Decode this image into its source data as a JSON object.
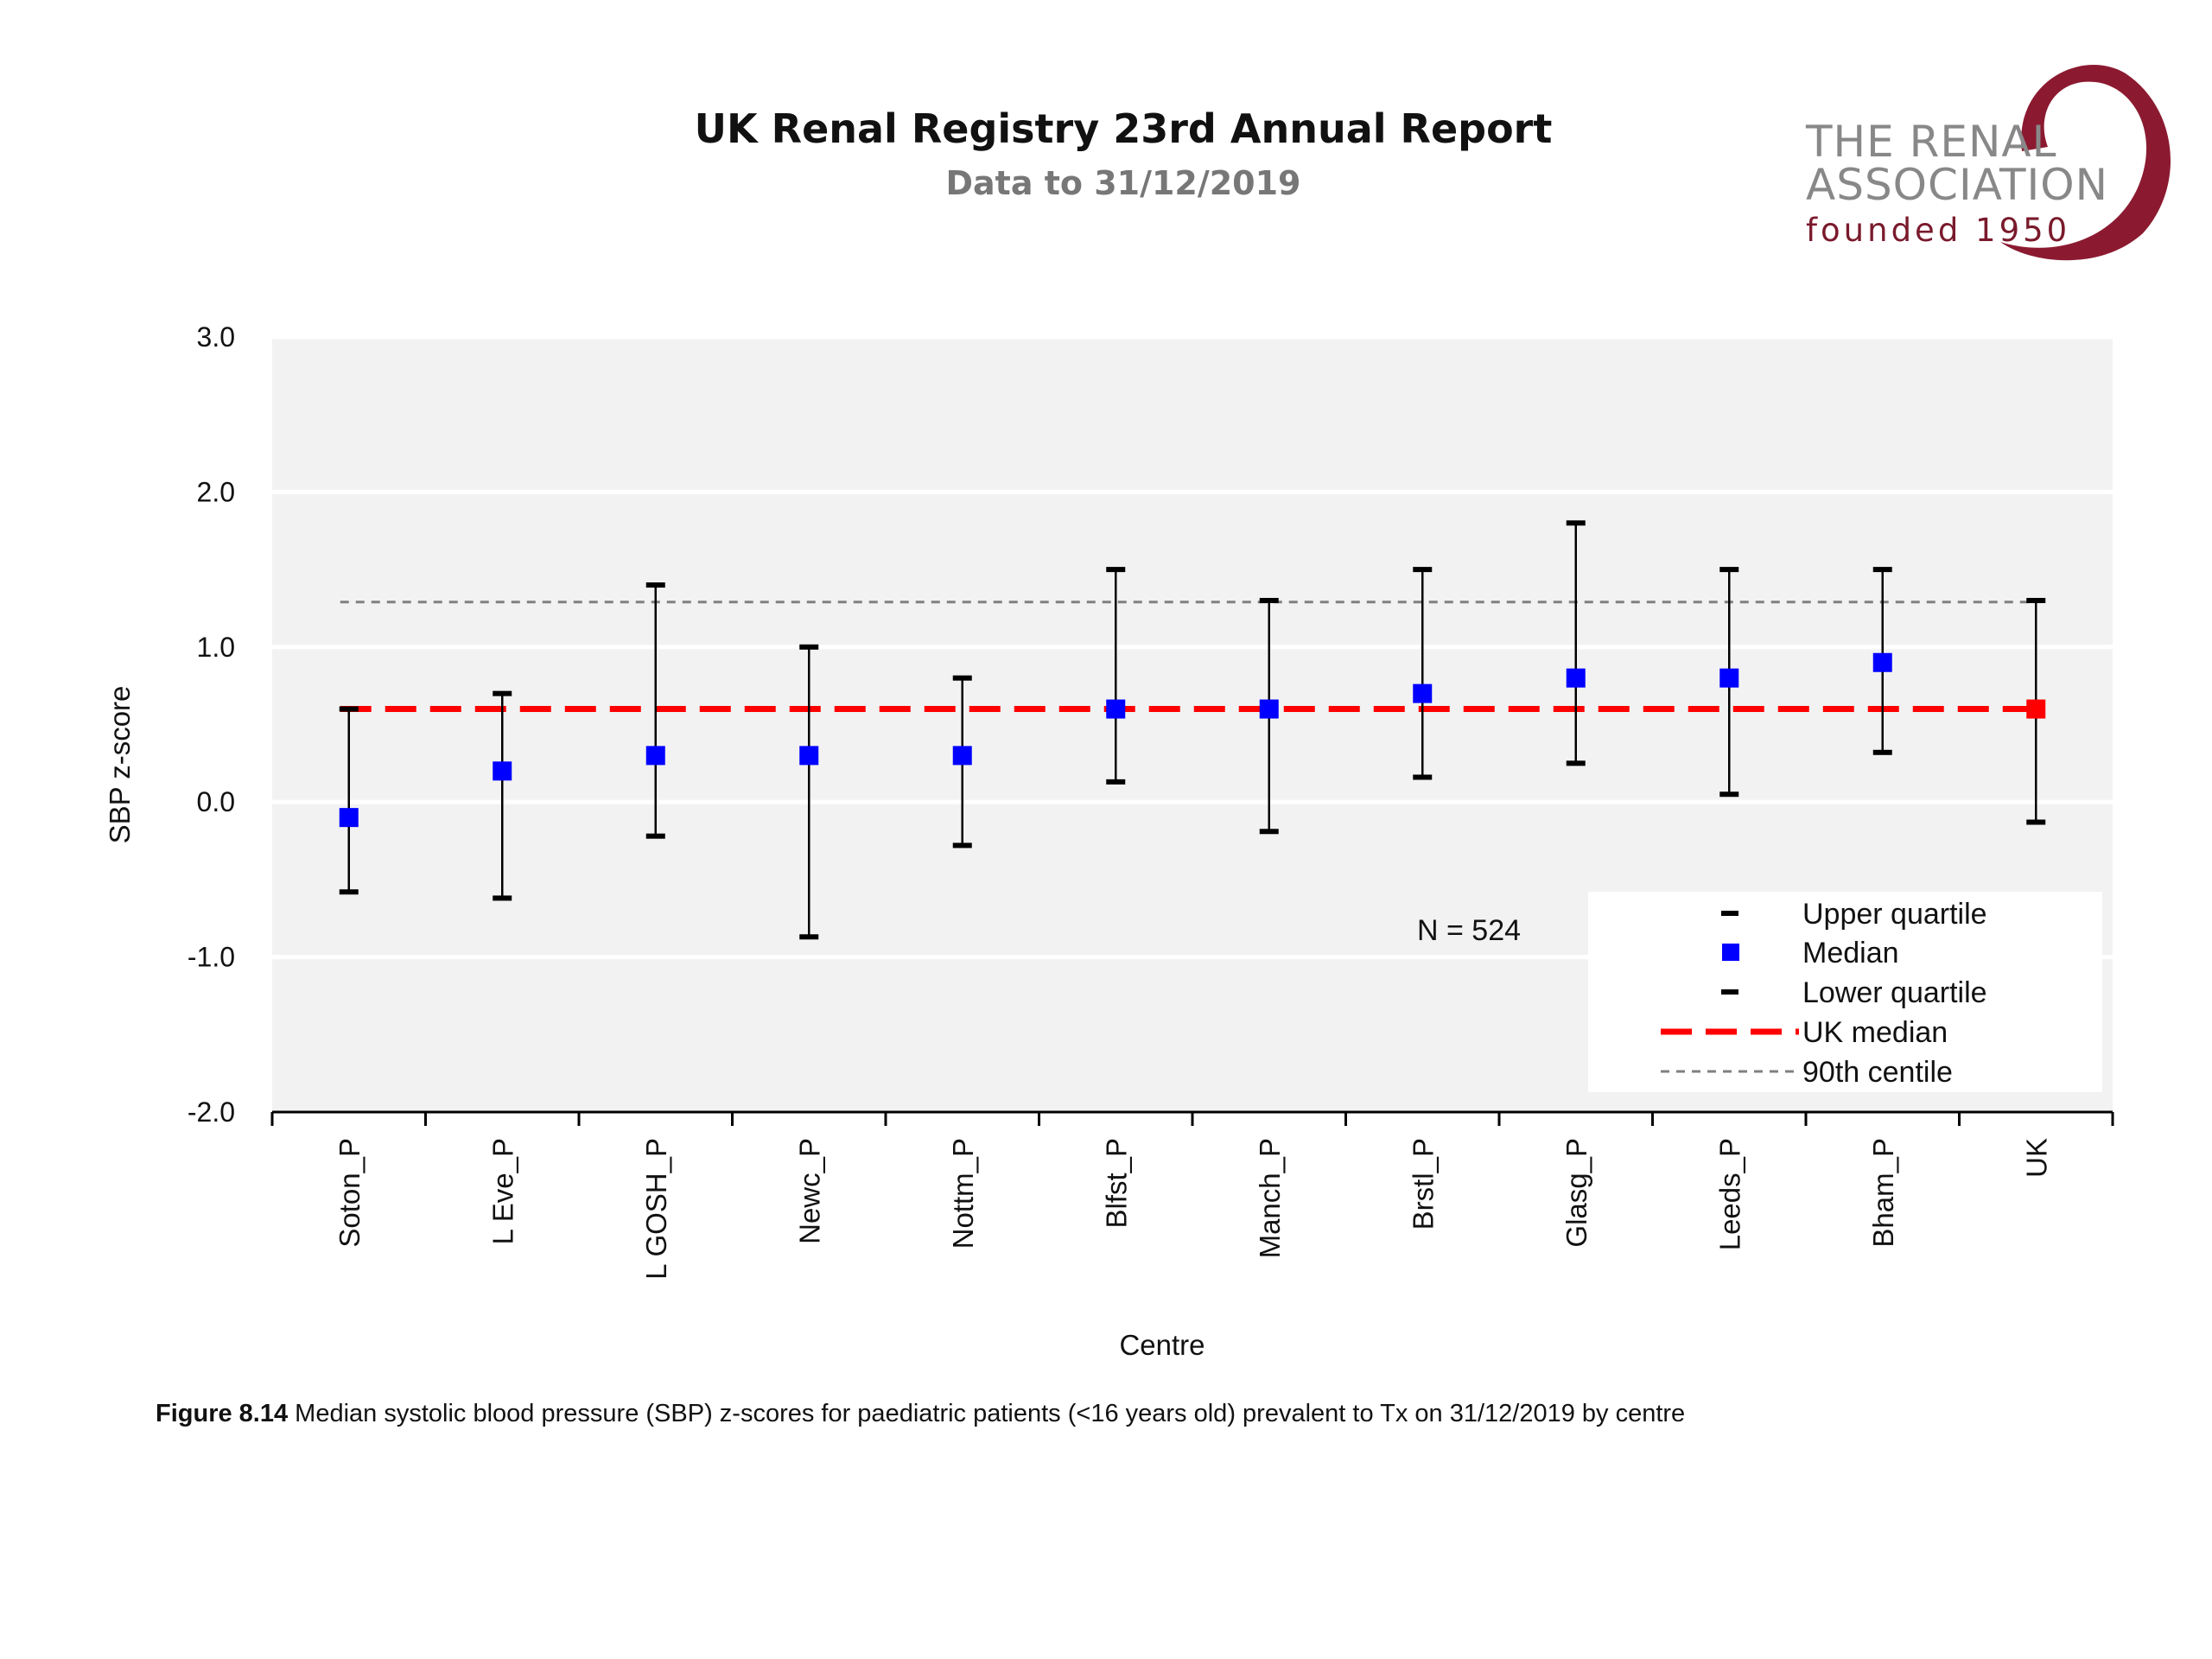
{
  "header": {
    "title": "UK Renal Registry 23rd Annual Report",
    "subtitle": "Data to 31/12/2019"
  },
  "logo": {
    "line1": "THE RENAL",
    "line2": "ASSOCIATION",
    "line3": "founded 1950",
    "colors": {
      "text": "#888888",
      "accent": "#7a1a2c"
    }
  },
  "caption": {
    "label": "Figure 8.14",
    "text": " Median systolic blood pressure (SBP) z-scores for paediatric patients (<16 years old) prevalent to Tx on 31/12/2019 by centre"
  },
  "chart_data": {
    "type": "scatter",
    "xlabel": "Centre",
    "ylabel": "SBP z-score",
    "ylim": [
      -2.0,
      3.0
    ],
    "yticks": [
      "3.0",
      "2.0",
      "1.0",
      "0.0",
      "-1.0",
      "-2.0"
    ],
    "ytick_values": [
      3.0,
      2.0,
      1.0,
      0.0,
      -1.0,
      -2.0
    ],
    "grid": true,
    "categories": [
      "Soton_P",
      "L Eve_P",
      "L GOSH_P",
      "Newc_P",
      "Nottm_P",
      "Blfst_P",
      "Manch_P",
      "Brstl_P",
      "Glasg_P",
      "Leeds_P",
      "Bham_P",
      "UK"
    ],
    "median": [
      -0.1,
      0.2,
      0.3,
      0.3,
      0.3,
      0.6,
      0.6,
      0.7,
      0.8,
      0.8,
      0.9,
      0.6
    ],
    "upper_quartile": [
      0.6,
      0.7,
      1.4,
      1.0,
      0.8,
      1.5,
      1.3,
      1.5,
      1.8,
      1.5,
      1.5,
      1.3
    ],
    "lower_quartile": [
      -0.58,
      -0.62,
      -0.22,
      -0.87,
      -0.28,
      0.13,
      -0.19,
      0.16,
      0.25,
      0.05,
      0.32,
      -0.13
    ],
    "uk_median": 0.6,
    "centile_90": 1.29,
    "annotation": "N = 524",
    "legend": {
      "position": "bottom-right",
      "items": [
        "Upper quartile",
        "Median",
        "Lower quartile",
        "UK median",
        "90th centile"
      ]
    },
    "colors": {
      "plot_bg": "#f2f2f2",
      "median": "#0000ff",
      "uk_marker": "#ff0000",
      "uk_median_line": "#ff0000",
      "centile_line": "#808080",
      "whisker": "#000000"
    }
  }
}
